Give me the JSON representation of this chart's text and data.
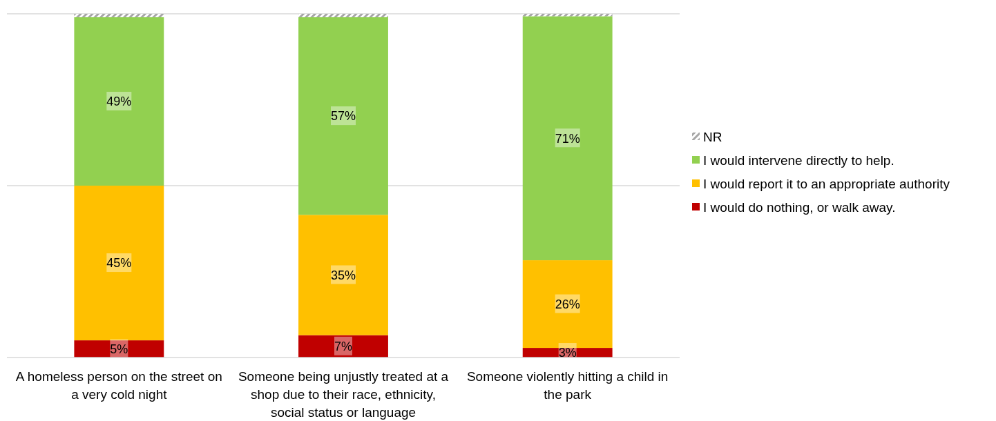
{
  "chart_data": {
    "type": "bar",
    "stacked": true,
    "categories": [
      "A homeless person on the street on a very cold night",
      "Someone being unjustly treated at a shop due to their race, ethnicity, social status or language",
      "Someone violently hitting a child in the park"
    ],
    "series": [
      {
        "name": "I would do nothing, or walk away.",
        "color": "#c00000",
        "values": [
          5,
          6.5,
          2.8
        ],
        "value_labels": [
          "5%",
          "7%",
          "3%"
        ]
      },
      {
        "name": "I would report it to an appropriate authority",
        "color": "#ffc000",
        "values": [
          45,
          35,
          25.5
        ],
        "value_labels": [
          "45%",
          "35%",
          "26%"
        ]
      },
      {
        "name": "I would intervene directly to help.",
        "color": "#92d050",
        "values": [
          49,
          57.5,
          71
        ],
        "value_labels": [
          "49%",
          "57%",
          "71%"
        ]
      },
      {
        "name": "NR",
        "color": "#a6a6a6",
        "values": [
          1,
          1,
          0.7
        ]
      }
    ],
    "ylim": [
      0,
      100
    ],
    "ref_lines": [
      {
        "axis": "y",
        "value": 50
      },
      {
        "axis": "y",
        "value": 100
      }
    ],
    "tick_labels": "x",
    "legend": "right"
  }
}
